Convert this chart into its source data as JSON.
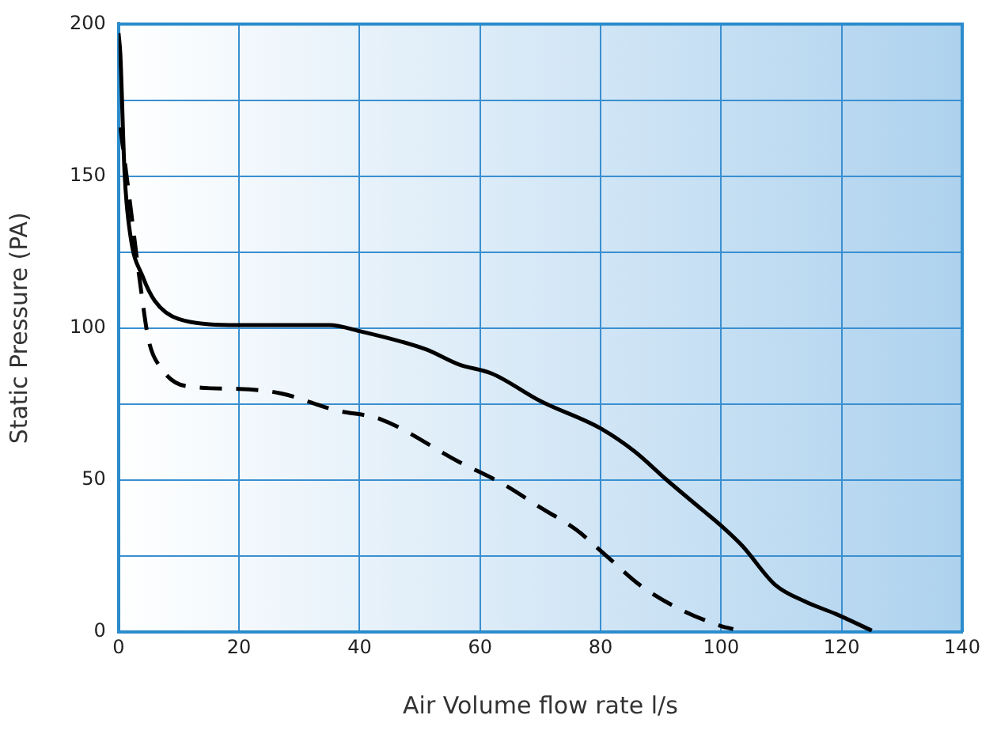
{
  "chart_data": {
    "type": "line",
    "xlabel": "Air Volume flow rate l/s",
    "ylabel": "Static Pressure (PA)",
    "xlim": [
      0,
      140
    ],
    "ylim": [
      0,
      200
    ],
    "xticks": [
      0,
      20,
      40,
      60,
      80,
      100,
      120,
      140
    ],
    "yticks": [
      0,
      {
        "value": 25,
        "label": null
      },
      50,
      {
        "value": 75,
        "label": null
      },
      100,
      {
        "value": 125,
        "label": null
      },
      150,
      {
        "value": 175,
        "label": null
      },
      200
    ],
    "grid": true,
    "legend": false,
    "marker": "none",
    "series": [
      {
        "color": "#000000",
        "line_style": "solid",
        "x": [
          0,
          0.3,
          1,
          2,
          4,
          6,
          10,
          20,
          35,
          40,
          51,
          56.5,
          62,
          70,
          80,
          85.6,
          91,
          97,
          100,
          103.5,
          109,
          114,
          119,
          125
        ],
        "values": [
          197,
          190,
          151,
          130,
          117,
          109,
          103,
          101,
          101,
          99,
          93,
          88,
          85,
          76,
          67,
          59.5,
          50,
          40,
          35,
          28.4,
          15.5,
          10,
          6,
          0.5
        ]
      },
      {
        "color": "#000000",
        "line_style": "dashed",
        "x": [
          0.3,
          1.6,
          3.5,
          5,
          7,
          11,
          20,
          27,
          36,
          43.5,
          56.5,
          64,
          70,
          76,
          81,
          86.5,
          92.7,
          100,
          102
        ],
        "values": [
          166,
          146,
          116,
          96,
          87,
          81,
          80,
          78.5,
          73,
          70,
          56,
          48.5,
          41,
          33.6,
          25,
          15.5,
          8,
          2,
          1
        ]
      }
    ]
  }
}
